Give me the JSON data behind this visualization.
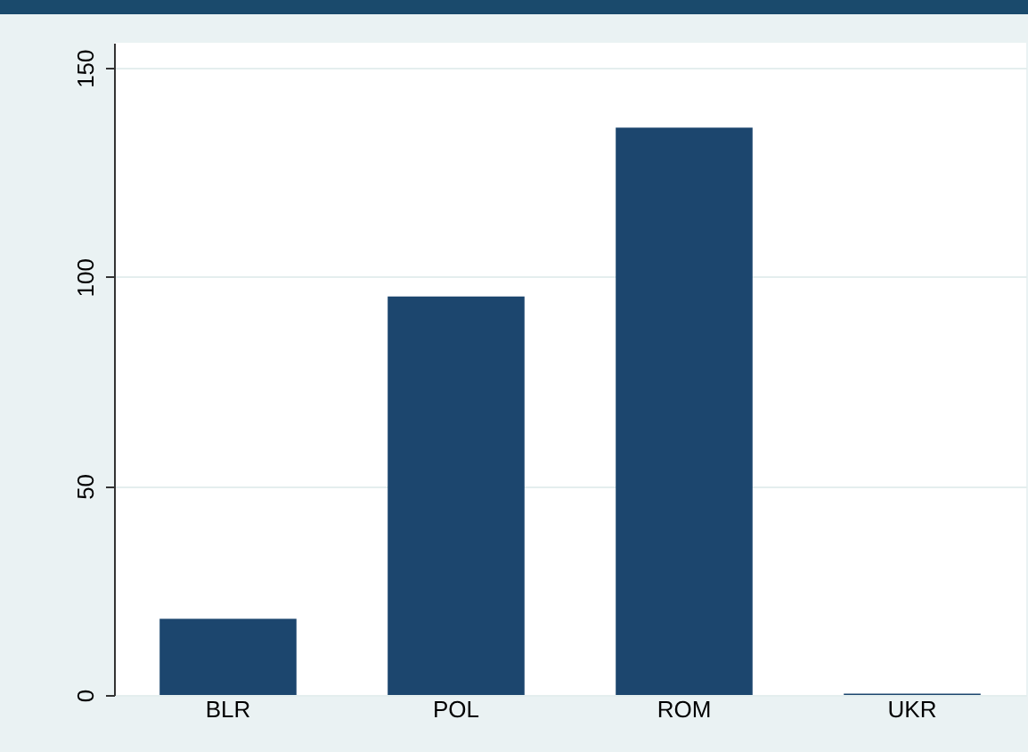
{
  "chart_data": {
    "type": "bar",
    "categories": [
      "BLR",
      "POL",
      "ROM",
      "UKR"
    ],
    "values": [
      18.2,
      95.3,
      135.7,
      0.3
    ],
    "color": "#1c466e",
    "ylim": [
      0,
      156
    ],
    "yticks": [
      0,
      50,
      100,
      150
    ],
    "grid": "y"
  }
}
